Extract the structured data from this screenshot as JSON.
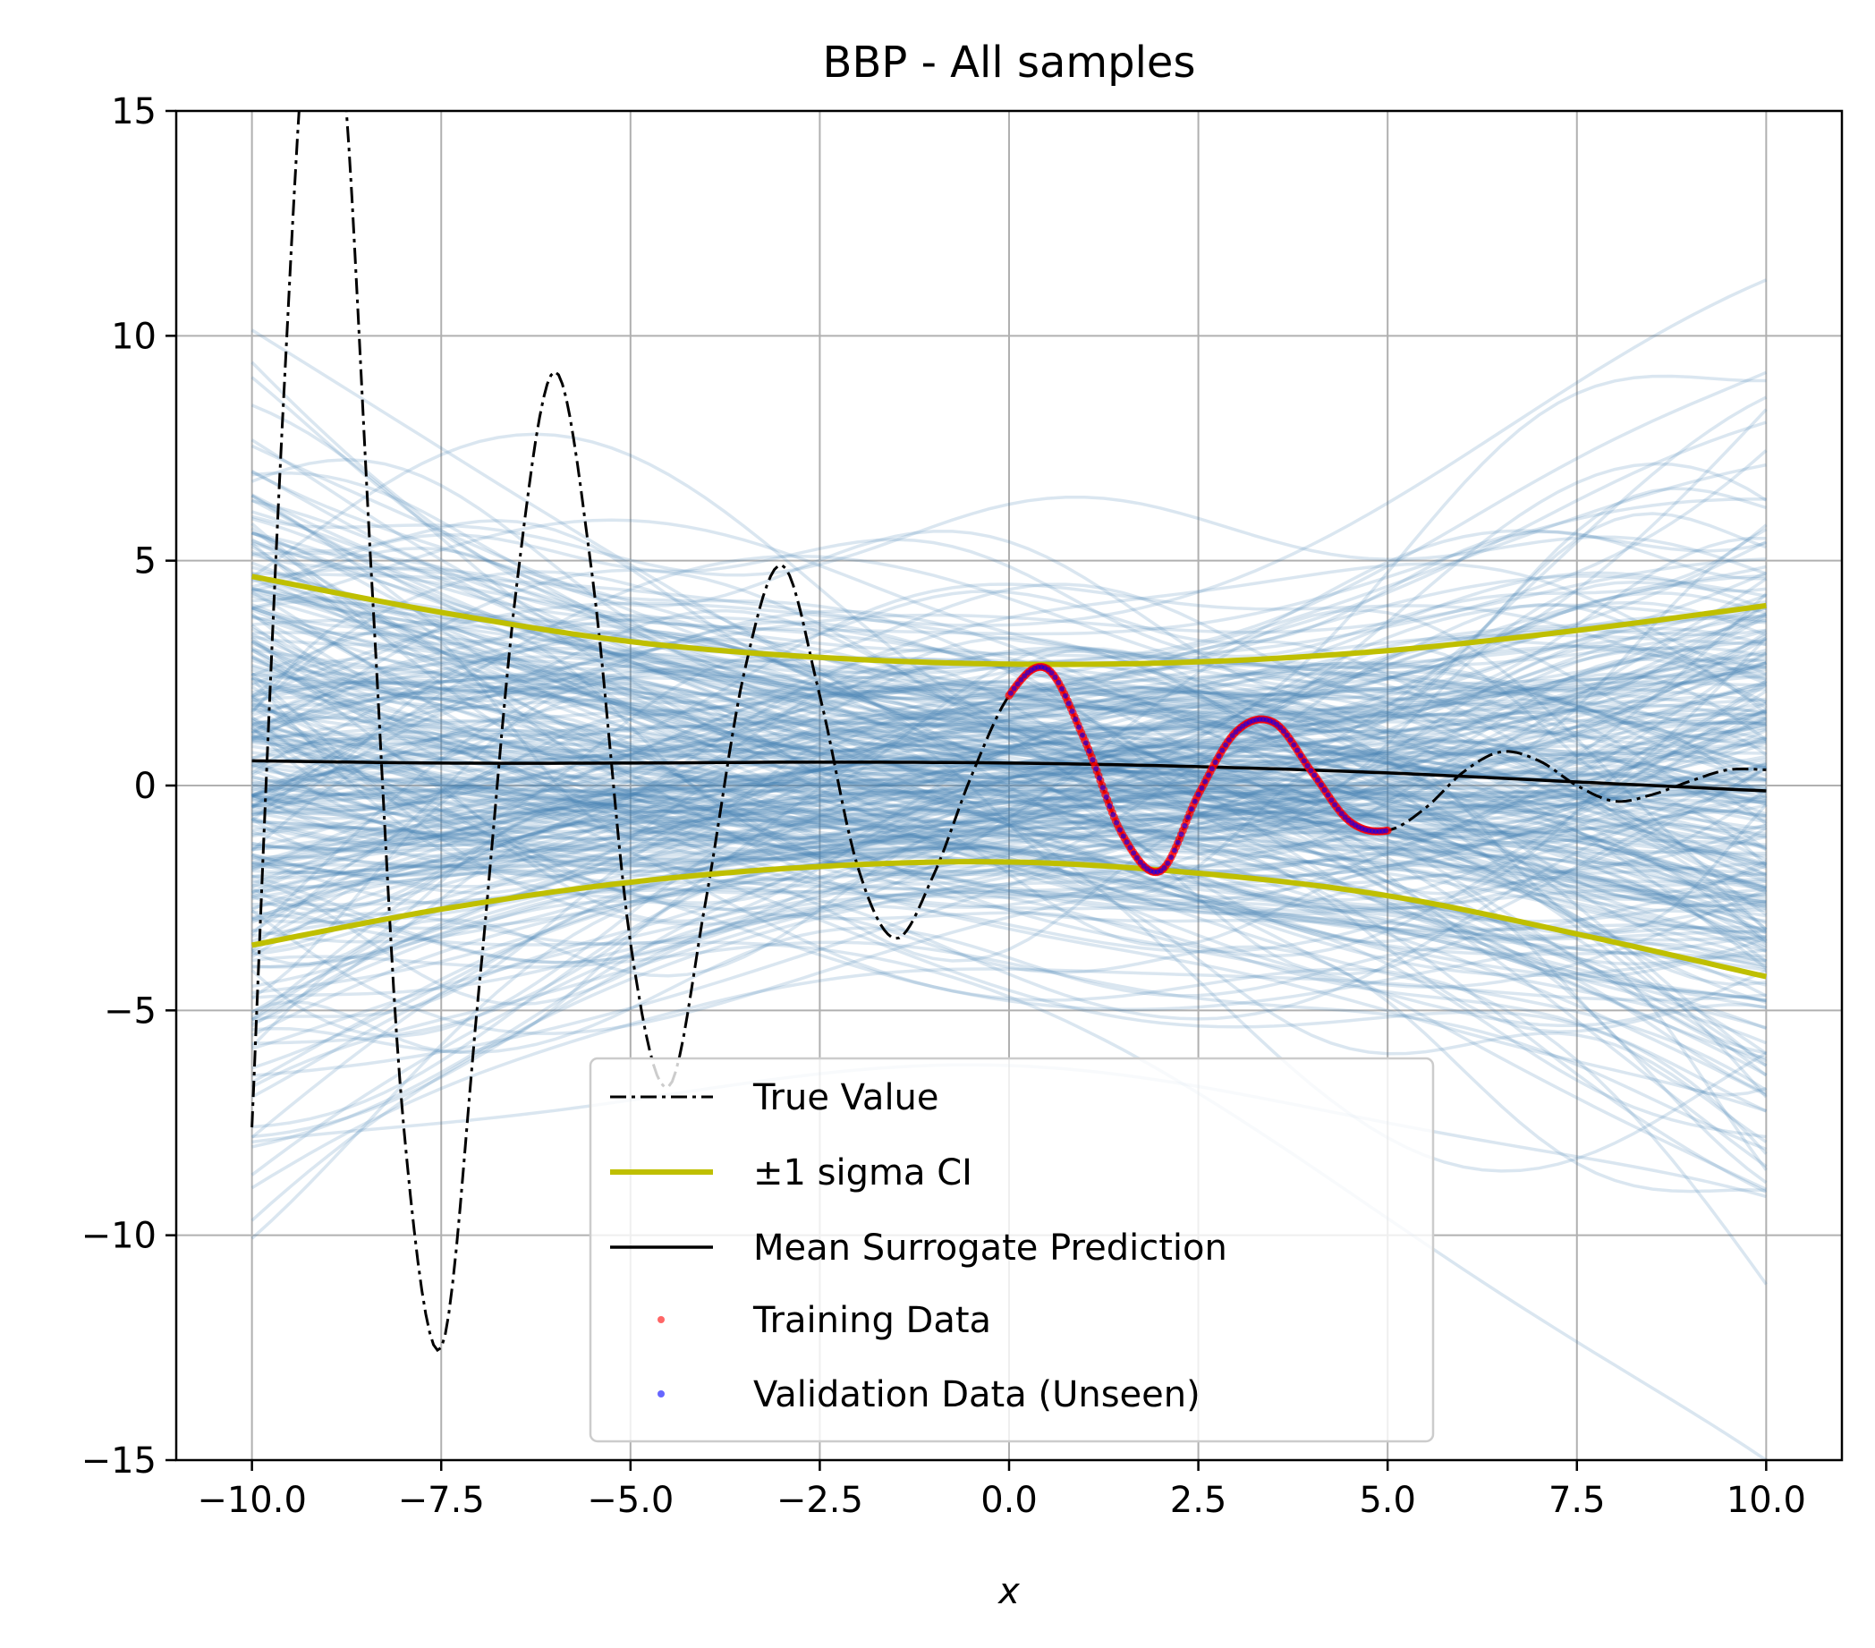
{
  "chart_data": {
    "type": "line",
    "title": "BBP - All samples",
    "xlabel": "x",
    "ylabel": "",
    "xlim": [
      -11.0,
      11.0
    ],
    "ylim": [
      -15,
      15
    ],
    "x_ticks": [
      -10.0,
      -7.5,
      -5.0,
      -2.5,
      0.0,
      2.5,
      5.0,
      7.5,
      10.0
    ],
    "x_tick_labels": [
      "−10.0",
      "−7.5",
      "−5.0",
      "−2.5",
      "0.0",
      "2.5",
      "5.0",
      "7.5",
      "10.0"
    ],
    "y_ticks": [
      -15,
      -10,
      -5,
      0,
      5,
      10,
      15
    ],
    "y_tick_labels": [
      "−15",
      "−10",
      "−5",
      "0",
      "5",
      "10",
      "15"
    ],
    "grid": true,
    "legend_position": "bottom-center",
    "colors": {
      "samples": "#4682b4",
      "ci": "#bfbf00",
      "mean": "#000000",
      "true_value": "#000000",
      "training": "#ff0000",
      "validation": "#0000ff",
      "grid": "#b0b0b0"
    },
    "sample_band": {
      "description_count": 300,
      "mean_start": 0.55,
      "mean_end": -0.15,
      "spread_start": 4.1,
      "spread_mid": 2.2,
      "spread_end": 4.2
    },
    "series": [
      {
        "name": "True Value",
        "style": "dash-dot",
        "x": [
          -10.0,
          -9.6,
          -9.2,
          -8.8,
          -8.4,
          -8.0,
          -7.5,
          -7.0,
          -6.5,
          -6.0,
          -5.5,
          -5.0,
          -4.5,
          -4.0,
          -3.5,
          -3.0,
          -2.5,
          -2.0,
          -1.5,
          -1.0,
          -0.5,
          0.0,
          0.5,
          1.0,
          1.5,
          2.0,
          2.5,
          3.0,
          3.5,
          4.0,
          4.5,
          5.0,
          5.5,
          6.0,
          6.5,
          7.0,
          7.5,
          8.0,
          8.5,
          9.0,
          9.5,
          10.0
        ],
        "y": [
          -7.6,
          8.0,
          18.5,
          16.0,
          4.0,
          -7.5,
          -12.5,
          -4.5,
          4.5,
          9.2,
          4.6,
          -3.5,
          -6.7,
          -2.5,
          2.5,
          4.9,
          2.0,
          -1.8,
          -3.4,
          -2.0,
          0.2,
          2.0,
          2.6,
          1.0,
          -1.1,
          -1.9,
          -0.2,
          1.2,
          1.4,
          0.3,
          -0.8,
          -1.0,
          -0.5,
          0.3,
          0.75,
          0.55,
          0.0,
          -0.35,
          -0.2,
          0.1,
          0.35,
          0.35
        ]
      },
      {
        "name": "±1 sigma CI",
        "upper": {
          "x": [
            -10,
            -7.5,
            -5,
            -2.5,
            0,
            2.5,
            5,
            7.5,
            10
          ],
          "y": [
            4.65,
            3.85,
            3.2,
            2.85,
            2.7,
            2.75,
            3.0,
            3.45,
            4.0
          ]
        },
        "lower": {
          "x": [
            -10,
            -7.5,
            -5,
            -2.5,
            0,
            2.5,
            5,
            7.5,
            10
          ],
          "y": [
            -3.55,
            -2.75,
            -2.15,
            -1.8,
            -1.7,
            -1.95,
            -2.45,
            -3.3,
            -4.25
          ]
        }
      },
      {
        "name": "Mean Surrogate Prediction",
        "x": [
          -10,
          -7.5,
          -5,
          -2.5,
          0,
          2.5,
          5,
          7.5,
          10
        ],
        "y": [
          0.55,
          0.5,
          0.5,
          0.52,
          0.5,
          0.42,
          0.28,
          0.08,
          -0.12
        ]
      },
      {
        "name": "Training Data",
        "x_range": [
          0.0,
          5.0
        ]
      },
      {
        "name": "Validation Data (Unseen)",
        "x_range": [
          0.0,
          5.0
        ]
      }
    ]
  }
}
